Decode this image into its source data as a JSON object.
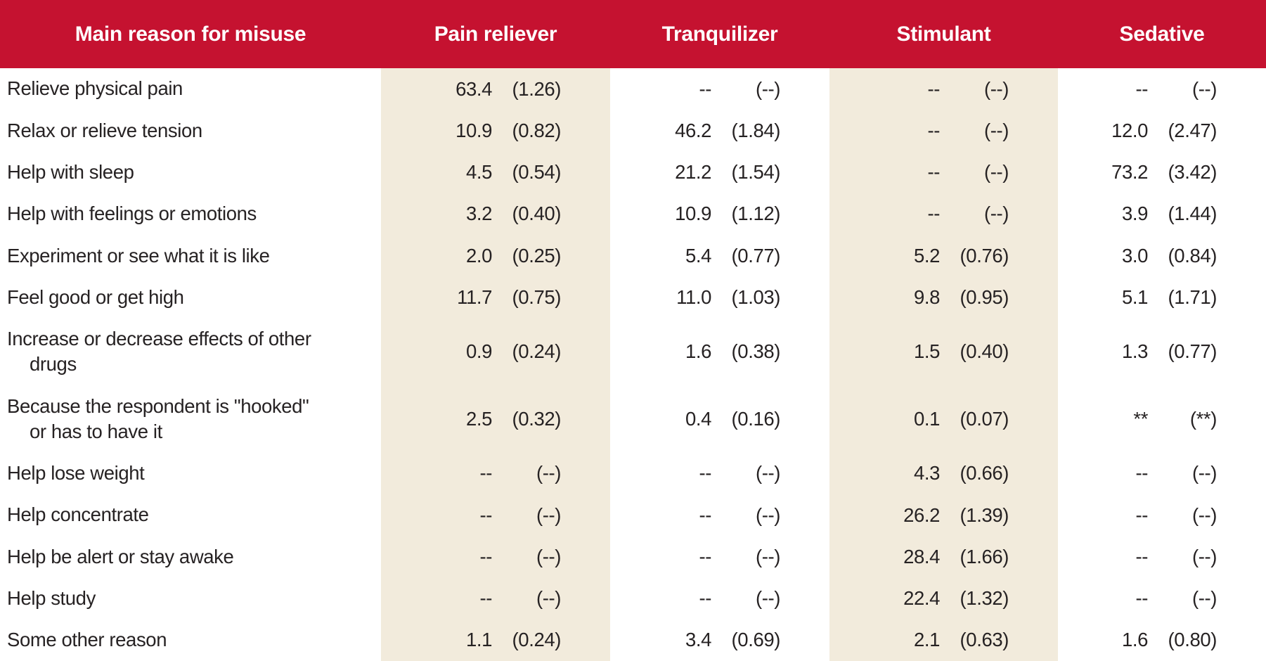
{
  "colors": {
    "header_red": "#C51230",
    "band_beige": "#F2EBDC",
    "text": "#262223",
    "header_text": "#FFFFFF"
  },
  "table": {
    "columns": [
      "Main reason for misuse",
      "Pain reliever",
      "Tranquilizer",
      "Stimulant",
      "Sedative"
    ],
    "rows": [
      {
        "label": "Relieve physical pain",
        "cells": [
          [
            "63.4",
            "(1.26)"
          ],
          [
            "--",
            "(--)"
          ],
          [
            "--",
            "(--)"
          ],
          [
            "--",
            "(--)"
          ]
        ]
      },
      {
        "label": "Relax or relieve tension",
        "cells": [
          [
            "10.9",
            "(0.82)"
          ],
          [
            "46.2",
            "(1.84)"
          ],
          [
            "--",
            "(--)"
          ],
          [
            "12.0",
            "(2.47)"
          ]
        ]
      },
      {
        "label": "Help with sleep",
        "cells": [
          [
            "4.5",
            "(0.54)"
          ],
          [
            "21.2",
            "(1.54)"
          ],
          [
            "--",
            "(--)"
          ],
          [
            "73.2",
            "(3.42)"
          ]
        ]
      },
      {
        "label": "Help with feelings or emotions",
        "cells": [
          [
            "3.2",
            "(0.40)"
          ],
          [
            "10.9",
            "(1.12)"
          ],
          [
            "--",
            "(--)"
          ],
          [
            "3.9",
            "(1.44)"
          ]
        ]
      },
      {
        "label": "Experiment or see what it is like",
        "cells": [
          [
            "2.0",
            "(0.25)"
          ],
          [
            "5.4",
            "(0.77)"
          ],
          [
            "5.2",
            "(0.76)"
          ],
          [
            "3.0",
            "(0.84)"
          ]
        ]
      },
      {
        "label": "Feel good or get high",
        "cells": [
          [
            "11.7",
            "(0.75)"
          ],
          [
            "11.0",
            "(1.03)"
          ],
          [
            "9.8",
            "(0.95)"
          ],
          [
            "5.1",
            "(1.71)"
          ]
        ]
      },
      {
        "label": "Increase or decrease effects of other drugs",
        "label_lines": [
          "Increase or decrease effects of other",
          "drugs"
        ],
        "cells": [
          [
            "0.9",
            "(0.24)"
          ],
          [
            "1.6",
            "(0.38)"
          ],
          [
            "1.5",
            "(0.40)"
          ],
          [
            "1.3",
            "(0.77)"
          ]
        ]
      },
      {
        "label": "Because the respondent is \"hooked\" or has to have it",
        "label_lines": [
          "Because the respondent is \"hooked\"",
          "or has to have it"
        ],
        "cells": [
          [
            "2.5",
            "(0.32)"
          ],
          [
            "0.4",
            "(0.16)"
          ],
          [
            "0.1",
            "(0.07)"
          ],
          [
            "**",
            "(**)"
          ]
        ]
      },
      {
        "label": "Help lose weight",
        "cells": [
          [
            "--",
            "(--)"
          ],
          [
            "--",
            "(--)"
          ],
          [
            "4.3",
            "(0.66)"
          ],
          [
            "--",
            "(--)"
          ]
        ]
      },
      {
        "label": "Help concentrate",
        "cells": [
          [
            "--",
            "(--)"
          ],
          [
            "--",
            "(--)"
          ],
          [
            "26.2",
            "(1.39)"
          ],
          [
            "--",
            "(--)"
          ]
        ]
      },
      {
        "label": "Help be alert or stay awake",
        "cells": [
          [
            "--",
            "(--)"
          ],
          [
            "--",
            "(--)"
          ],
          [
            "28.4",
            "(1.66)"
          ],
          [
            "--",
            "(--)"
          ]
        ]
      },
      {
        "label": "Help study",
        "cells": [
          [
            "--",
            "(--)"
          ],
          [
            "--",
            "(--)"
          ],
          [
            "22.4",
            "(1.32)"
          ],
          [
            "--",
            "(--)"
          ]
        ]
      },
      {
        "label": "Some other reason",
        "cells": [
          [
            "1.1",
            "(0.24)"
          ],
          [
            "3.4",
            "(0.69)"
          ],
          [
            "2.1",
            "(0.63)"
          ],
          [
            "1.6",
            "(0.80)"
          ]
        ]
      }
    ]
  }
}
